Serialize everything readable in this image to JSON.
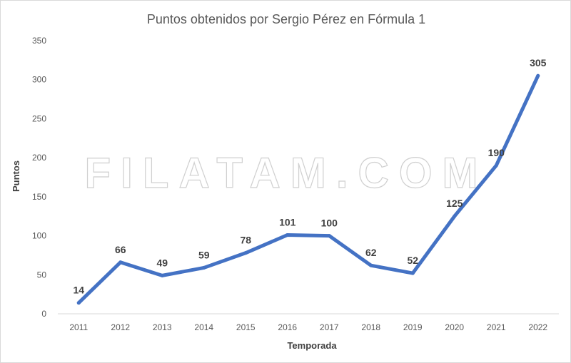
{
  "chart_data": {
    "type": "line",
    "title": "Puntos obtenidos por Sergio Pérez en Fórmula 1",
    "xlabel": "Temporada",
    "ylabel": "Puntos",
    "categories": [
      "2011",
      "2012",
      "2013",
      "2014",
      "2015",
      "2016",
      "2017",
      "2018",
      "2019",
      "2020",
      "2021",
      "2022"
    ],
    "series": [
      {
        "values": [
          14,
          66,
          49,
          59,
          78,
          101,
          100,
          62,
          52,
          125,
          190,
          305
        ]
      }
    ],
    "ylim": [
      0,
      350
    ],
    "yticks": [
      0,
      50,
      100,
      150,
      200,
      250,
      300,
      350
    ],
    "grid": false,
    "legend": "none",
    "line_color": "#4472c4"
  },
  "watermark": "FILATAM.COM"
}
